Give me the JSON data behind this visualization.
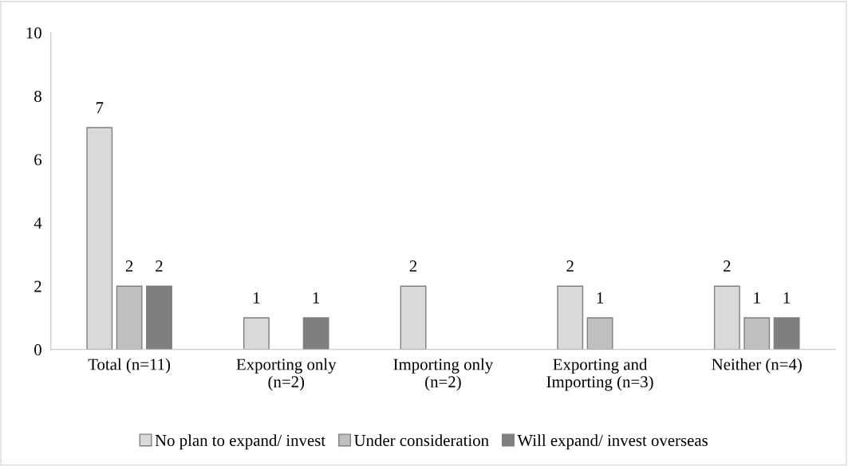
{
  "chart_data": {
    "type": "bar",
    "categories": [
      "Total (n=11)",
      "Exporting only\n(n=2)",
      "Importing only\n(n=2)",
      "Exporting and\nImporting (n=3)",
      "Neither (n=4)"
    ],
    "series": [
      {
        "name": "No plan to expand/ invest",
        "color": "#d9d9d9",
        "values": [
          7,
          1,
          2,
          2,
          2
        ]
      },
      {
        "name": "Under consideration",
        "color": "#bfbfbf",
        "values": [
          2,
          null,
          null,
          1,
          1
        ]
      },
      {
        "name": "Will expand/ invest overseas",
        "color": "#7f7f7f",
        "values": [
          2,
          1,
          null,
          null,
          1
        ]
      }
    ],
    "ylim": [
      0,
      10
    ],
    "yticks": [
      0,
      2,
      4,
      6,
      8,
      10
    ],
    "data_labels": true,
    "legend": "bottom",
    "grid": false
  }
}
